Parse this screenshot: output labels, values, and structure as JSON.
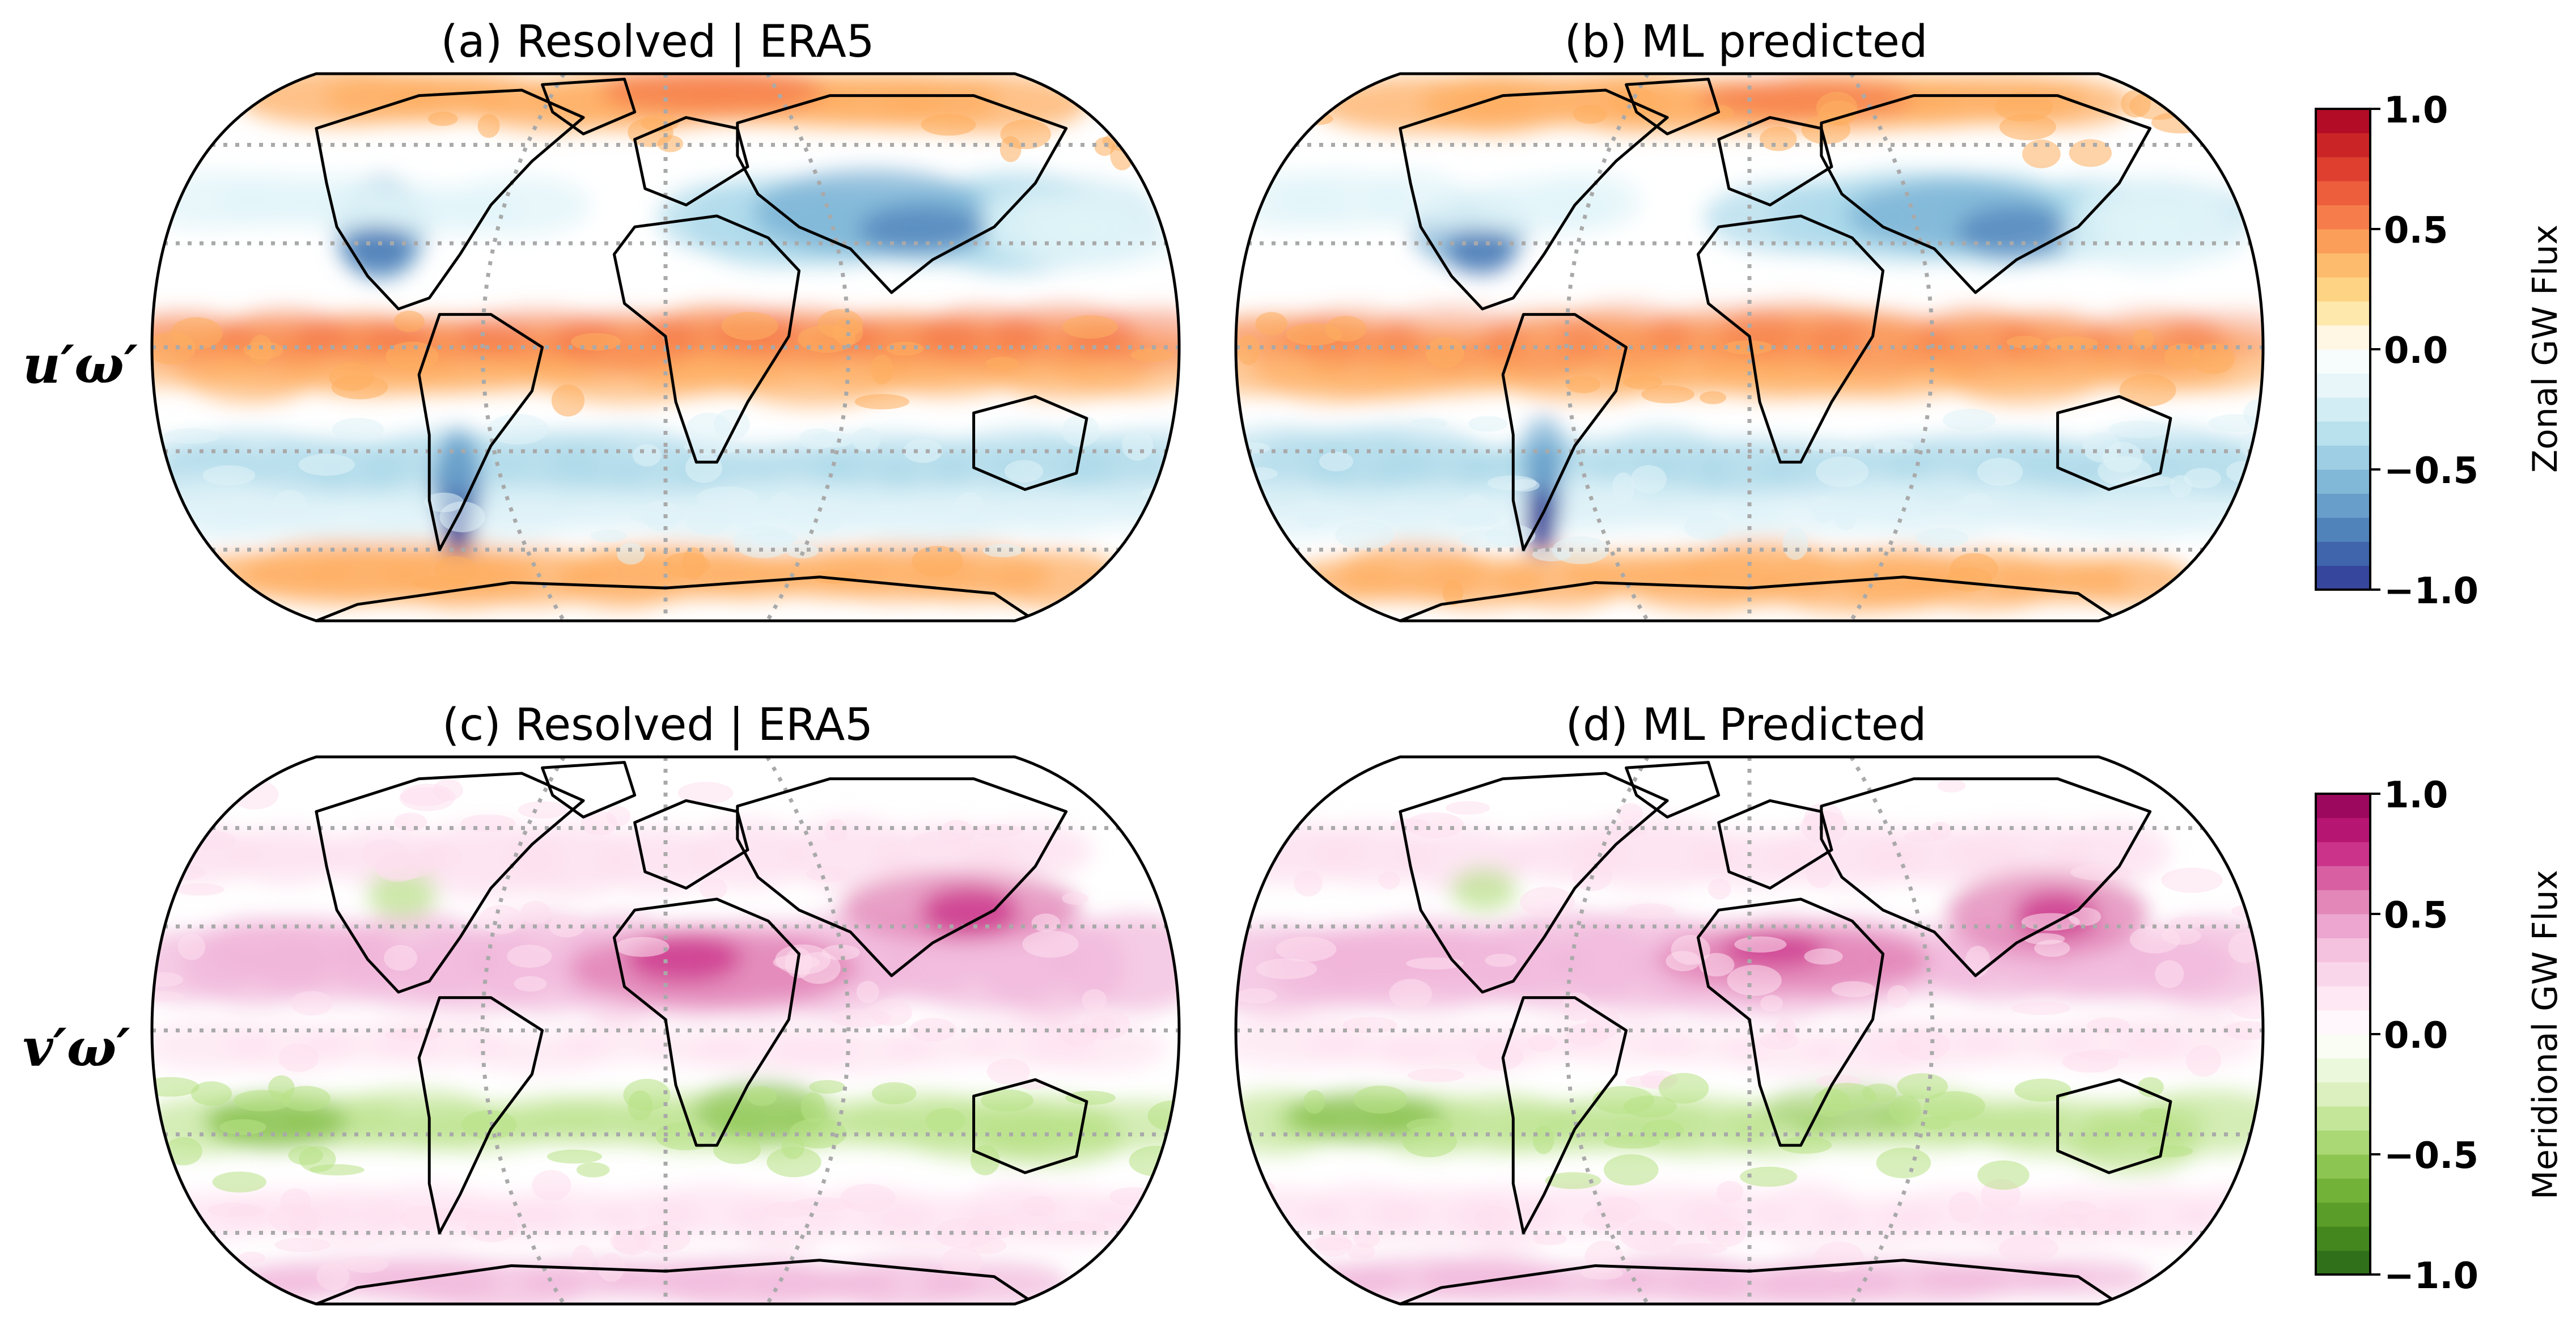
{
  "panels": [
    {
      "title": "(a) Resolved | ERA5",
      "variable": "zonal",
      "style": "resolved"
    },
    {
      "title": "(b) ML predicted",
      "variable": "zonal",
      "style": "predicted"
    },
    {
      "title": "(c) Resolved | ERA5",
      "variable": "meridional",
      "style": "resolved"
    },
    {
      "title": "(d) ML Predicted",
      "variable": "meridional",
      "style": "predicted"
    }
  ],
  "row_labels": [
    "u′ω′",
    "v′ω′"
  ],
  "colorbars": [
    {
      "label": "Zonal GW Flux",
      "ticks": [
        "1.0",
        "0.5",
        "0.0",
        "−0.5",
        "−1.0"
      ],
      "range": [
        -1.0,
        1.0
      ],
      "colors": [
        "#313695",
        "#4575b4",
        "#74add1",
        "#abd9e9",
        "#e0f3f8",
        "#ffffff",
        "#fee090",
        "#fdae61",
        "#f46d43",
        "#d73027",
        "#a50026"
      ]
    },
    {
      "label": "Meridional GW Flux",
      "ticks": [
        "1.0",
        "0.5",
        "0.0",
        "−0.5",
        "−1.0"
      ],
      "range": [
        -1.0,
        1.0
      ],
      "colors": [
        "#276419",
        "#4d9221",
        "#7fbc41",
        "#b8e186",
        "#e6f5d0",
        "#ffffff",
        "#fde0ef",
        "#f1b6da",
        "#de77ae",
        "#c51b7d",
        "#8e0152"
      ]
    }
  ]
}
